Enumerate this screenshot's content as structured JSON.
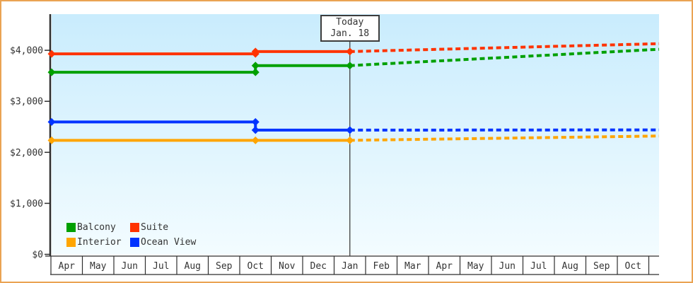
{
  "window": {
    "frame_border_color": "#EAA353",
    "background_color": "#ffffff"
  },
  "today_annotation": {
    "line1": "Today",
    "line2": "Jan. 18"
  },
  "legend": {
    "position": "bottom-left-inside-plot",
    "items": [
      {
        "label": "Balcony",
        "color": "#00A000"
      },
      {
        "label": "Suite",
        "color": "#FF3300"
      },
      {
        "label": "Interior",
        "color": "#FFA500"
      },
      {
        "label": "Ocean View",
        "color": "#0033FF"
      }
    ]
  },
  "chart_data": {
    "type": "line",
    "title": "",
    "xlabel": "",
    "ylabel": "",
    "categories": [
      "Apr",
      "May",
      "Jun",
      "Jul",
      "Aug",
      "Sep",
      "Oct",
      "Nov",
      "Dec",
      "Jan",
      "Feb",
      "Mar",
      "Apr",
      "May",
      "Jun",
      "Jul",
      "Aug",
      "Sep",
      "Oct"
    ],
    "y_ticks": [
      {
        "value": 0,
        "label": "$0"
      },
      {
        "value": 1000,
        "label": "$1,000"
      },
      {
        "value": 2000,
        "label": "$2,000"
      },
      {
        "value": 3000,
        "label": "$3,000"
      },
      {
        "value": 4000,
        "label": "$4,000"
      }
    ],
    "ylim": [
      0,
      4700
    ],
    "grid": false,
    "plot_background_gradient": [
      "#C9ECFD",
      "#F3FCFF"
    ],
    "axis_color": "#2f2f2f",
    "today_index": 9,
    "today_label": "Today Jan. 18",
    "line_style": {
      "solid_width": 4,
      "dash_pattern": "7 4.5",
      "marker": "diamond",
      "marker_radius": 5.5
    },
    "series": [
      {
        "name": "Interior",
        "color": "#FFA500",
        "actual_vertices": [
          [
            0,
            2235
          ],
          [
            6,
            2235
          ],
          [
            9,
            2235
          ]
        ],
        "forecast_end_value": 2320
      },
      {
        "name": "Ocean View",
        "color": "#0033FF",
        "actual_vertices": [
          [
            0,
            2595
          ],
          [
            6,
            2595
          ],
          [
            6,
            2435
          ],
          [
            9,
            2435
          ]
        ],
        "forecast_end_value": 2440
      },
      {
        "name": "Balcony",
        "color": "#00A000",
        "actual_vertices": [
          [
            0,
            3570
          ],
          [
            6,
            3570
          ],
          [
            6,
            3700
          ],
          [
            9,
            3700
          ]
        ],
        "forecast_end_value": 4020
      },
      {
        "name": "Suite",
        "color": "#FF3300",
        "actual_vertices": [
          [
            0,
            3930
          ],
          [
            6,
            3930
          ],
          [
            6,
            3975
          ],
          [
            9,
            3975
          ]
        ],
        "forecast_end_value": 4130
      }
    ]
  }
}
